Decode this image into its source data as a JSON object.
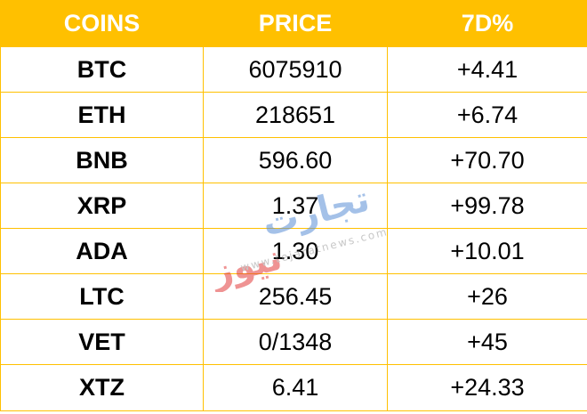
{
  "table": {
    "headers": [
      "COINS",
      "PRICE",
      "7D%"
    ],
    "rows": [
      {
        "coin": "BTC",
        "price": "6075910",
        "change": "+4.41"
      },
      {
        "coin": "ETH",
        "price": "218651",
        "change": "+6.74"
      },
      {
        "coin": "BNB",
        "price": "596.60",
        "change": "+70.70"
      },
      {
        "coin": "XRP",
        "price": "1.37",
        "change": "+99.78"
      },
      {
        "coin": "ADA",
        "price": "1.30",
        "change": "+10.01"
      },
      {
        "coin": "LTC",
        "price": "256.45",
        "change": "+26"
      },
      {
        "coin": "VET",
        "price": "0/1348",
        "change": "+45"
      },
      {
        "coin": "XTZ",
        "price": "6.41",
        "change": "+24.33"
      }
    ]
  },
  "colors": {
    "header_bg": "#ffc000",
    "header_text": "#ffffff",
    "border": "#ffc000",
    "watermark_red": "#e23b3b",
    "watermark_blue": "#5b8fd6"
  },
  "watermark": {
    "text_ar_top": "تجارت",
    "text_ar_bottom": "نیوز",
    "url": "www.tejaratnews.com"
  }
}
